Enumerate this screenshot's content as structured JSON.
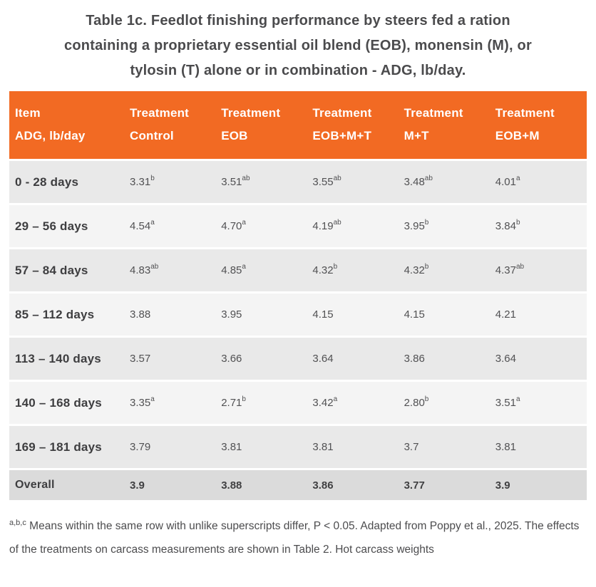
{
  "title": {
    "lines": [
      "Table 1c. Feedlot finishing performance by steers fed a ration",
      "containing a proprietary essential oil blend (EOB), monensin (M), or",
      "tylosin (T) alone or in combination - ADG, lb/day."
    ]
  },
  "table": {
    "header": [
      {
        "line1": "Item",
        "line2": "ADG, lb/day"
      },
      {
        "line1": "Treatment",
        "line2": "Control"
      },
      {
        "line1": "Treatment",
        "line2": "EOB"
      },
      {
        "line1": "Treatment",
        "line2": "EOB+M+T"
      },
      {
        "line1": "Treatment",
        "line2": "M+T"
      },
      {
        "line1": "Treatment",
        "line2": "EOB+M"
      }
    ],
    "rows": [
      {
        "label": "0 - 28 days",
        "cells": [
          {
            "v": "3.31",
            "sup": "b"
          },
          {
            "v": "3.51",
            "sup": "ab"
          },
          {
            "v": "3.55",
            "sup": "ab"
          },
          {
            "v": "3.48",
            "sup": "ab"
          },
          {
            "v": "4.01",
            "sup": "a"
          }
        ]
      },
      {
        "label": "29 – 56 days",
        "cells": [
          {
            "v": "4.54",
            "sup": "a"
          },
          {
            "v": "4.70",
            "sup": "a"
          },
          {
            "v": "4.19",
            "sup": "ab"
          },
          {
            "v": "3.95",
            "sup": "b"
          },
          {
            "v": "3.84",
            "sup": "b"
          }
        ]
      },
      {
        "label": "57 – 84 days",
        "cells": [
          {
            "v": "4.83",
            "sup": "ab"
          },
          {
            "v": "4.85",
            "sup": "a"
          },
          {
            "v": "4.32",
            "sup": "b"
          },
          {
            "v": "4.32",
            "sup": "b"
          },
          {
            "v": "4.37",
            "sup": "ab"
          }
        ]
      },
      {
        "label": "85 – 112 days",
        "cells": [
          {
            "v": "3.88"
          },
          {
            "v": "3.95"
          },
          {
            "v": "4.15"
          },
          {
            "v": "4.15"
          },
          {
            "v": "4.21"
          }
        ]
      },
      {
        "label": "113 – 140 days",
        "cells": [
          {
            "v": "3.57"
          },
          {
            "v": "3.66"
          },
          {
            "v": "3.64"
          },
          {
            "v": "3.86"
          },
          {
            "v": "3.64"
          }
        ]
      },
      {
        "label": "140 – 168 days",
        "cells": [
          {
            "v": "3.35",
            "sup": "a"
          },
          {
            "v": "2.71",
            "sup": "b"
          },
          {
            "v": "3.42",
            "sup": "a"
          },
          {
            "v": "2.80",
            "sup": "b"
          },
          {
            "v": "3.51",
            "sup": "a"
          }
        ]
      },
      {
        "label": "169 – 181 days",
        "cells": [
          {
            "v": "3.79"
          },
          {
            "v": "3.81"
          },
          {
            "v": "3.81"
          },
          {
            "v": "3.7"
          },
          {
            "v": "3.81"
          }
        ]
      },
      {
        "label": "Overall",
        "overall": true,
        "cells": [
          {
            "v": "3.9"
          },
          {
            "v": "3.88"
          },
          {
            "v": "3.86"
          },
          {
            "v": "3.77"
          },
          {
            "v": "3.9"
          }
        ]
      }
    ]
  },
  "footnote": {
    "sup": "a,b,c",
    "text": " Means within the same row with unlike superscripts differ, P < 0.05. Adapted from Poppy et al., 2025. The effects of the treatments on carcass measurements are shown in Table 2. Hot carcass weights"
  },
  "colors": {
    "header_bg": "#f26a23",
    "header_text": "#ffffff",
    "row_dark": "#e9e9e9",
    "row_light": "#f4f4f4",
    "overall_row_bg": "#dbdbdb",
    "title_text": "#4b4b4d",
    "body_text": "#515153"
  }
}
